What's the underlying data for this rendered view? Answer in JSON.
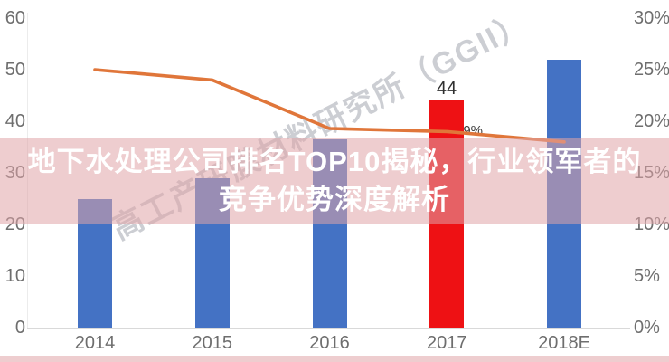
{
  "watermark": {
    "text": "高工产研膜材料研究所（GGII）"
  },
  "overlay": {
    "title_line1": "地下水处理公司排名TOP10揭秘，行业领军者的",
    "title_line2": "竞争优势深度解析",
    "band_color": "rgba(224,164,167,0.55)",
    "text_color": "#ffffff"
  },
  "chart_data": {
    "type": "bar",
    "categories": [
      "2014",
      "2015",
      "2016",
      "2017",
      "2018E"
    ],
    "series": [
      {
        "name": "bar_series",
        "type": "bar",
        "values": [
          25,
          29,
          36.5,
          44,
          52
        ]
      },
      {
        "name": "line_series",
        "type": "line",
        "values_pct": [
          25,
          24,
          19.3,
          19,
          18
        ]
      }
    ],
    "bar_colors": [
      "#4472C4",
      "#4472C4",
      "#4472C4",
      "#EE1114",
      "#4472C4"
    ],
    "line_color": "#E0763A",
    "left_axis": {
      "ticks": [
        "60",
        "50",
        "40",
        "30",
        "20",
        "10",
        "0"
      ],
      "min": 0,
      "max": 60
    },
    "right_axis": {
      "ticks": [
        "30%",
        "25%",
        "20%",
        "15%",
        "10%",
        "5%",
        "0%"
      ],
      "min": 0,
      "max": 30
    },
    "labels": {
      "bar_2017": "44",
      "line_2017": "19%"
    },
    "grid": "off",
    "legend": "none"
  }
}
